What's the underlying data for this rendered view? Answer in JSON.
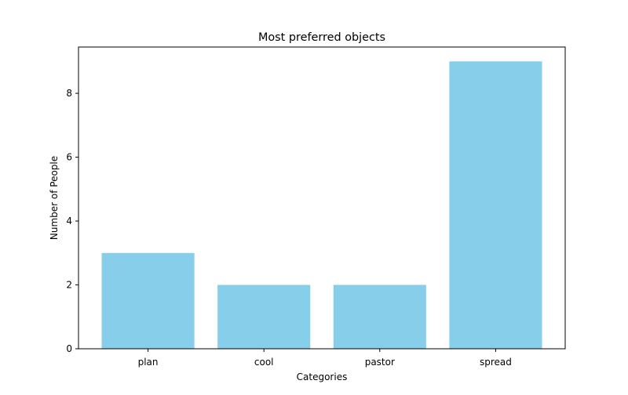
{
  "chart_data": {
    "type": "bar",
    "title": "Most preferred objects",
    "xlabel": "Categories",
    "ylabel": "Number of People",
    "categories": [
      "plan",
      "cool",
      "pastor",
      "spread"
    ],
    "values": [
      3,
      2,
      2,
      9
    ],
    "ylim": [
      0,
      9.45
    ],
    "yticks": [
      0,
      2,
      4,
      6,
      8
    ],
    "bar_color": "#87ceeb",
    "grid": false,
    "legend": "none"
  }
}
